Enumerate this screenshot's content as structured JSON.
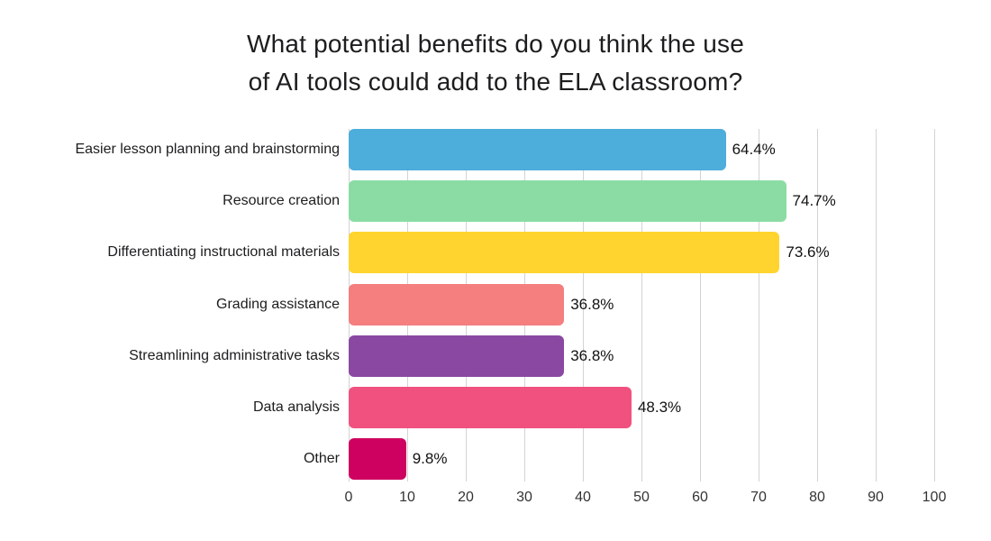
{
  "title": {
    "line1": "What potential benefits do you think the use",
    "line2": "of AI tools could add to the ELA classroom?"
  },
  "chart_data": {
    "type": "bar",
    "orientation": "horizontal",
    "title": "What potential benefits do you think the use of AI tools could add to the ELA classroom?",
    "categories": [
      "Easier lesson planning and brainstorming",
      "Resource creation",
      "Differentiating instructional materials",
      "Grading assistance",
      "Streamlining administrative tasks",
      "Data analysis",
      "Other"
    ],
    "values": [
      64.4,
      74.7,
      73.6,
      36.8,
      36.8,
      48.3,
      9.8
    ],
    "value_labels": [
      "64.4%",
      "74.7%",
      "73.6%",
      "36.8%",
      "36.8%",
      "48.3%",
      "9.8%"
    ],
    "bar_colors": [
      "#4daddb",
      "#8bdca4",
      "#ffd42e",
      "#f57e7e",
      "#8a48a2",
      "#f0517f",
      "#ce0060"
    ],
    "xlabel": "",
    "ylabel": "",
    "xlim": [
      0,
      100
    ],
    "x_ticks": [
      0,
      10,
      20,
      30,
      40,
      50,
      60,
      70,
      80,
      90,
      100
    ],
    "grid": true,
    "gridline_color": "#d3d3d3",
    "legend": "none",
    "background_color": "#ffffff"
  }
}
